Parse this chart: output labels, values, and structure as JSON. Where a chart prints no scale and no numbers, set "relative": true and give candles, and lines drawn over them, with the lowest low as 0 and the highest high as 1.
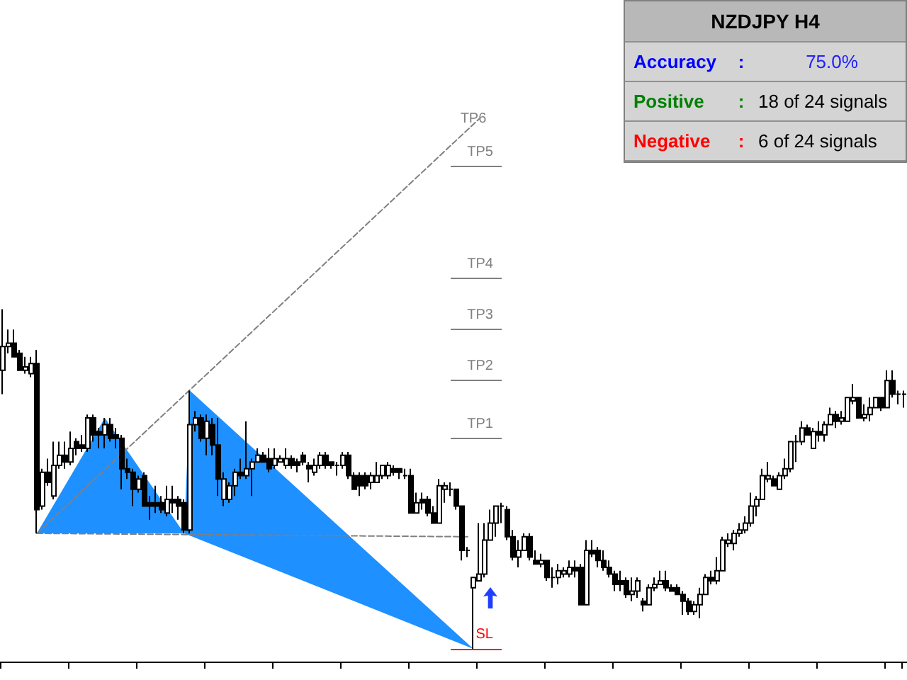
{
  "chart_data": {
    "type": "candlestick",
    "title": "NZDJPY  H4",
    "relative": true,
    "tick_labels": false,
    "annotations": [
      "Accuracy",
      ":",
      "75.0%",
      "Positive",
      ":",
      "18 of 24 signals",
      "Negative",
      ":",
      "6 of 24 signals",
      {
        "text": "TP6",
        "y": 1.56
      }
    ],
    "categories": [
      null,
      null,
      null,
      null,
      null,
      null,
      null,
      null,
      null,
      null,
      null,
      null,
      null,
      null,
      null,
      null,
      null,
      null,
      null,
      null,
      null,
      null,
      null,
      null,
      null,
      null,
      null,
      null,
      null,
      null,
      null,
      null,
      null,
      null,
      null,
      null,
      null,
      null,
      null,
      null,
      null,
      null,
      null,
      null,
      null,
      null,
      null,
      null,
      null,
      null,
      null,
      null,
      null,
      null,
      null,
      null,
      null,
      null,
      null,
      null,
      null,
      null,
      null,
      null,
      null,
      null,
      null,
      null,
      null,
      null,
      null,
      null,
      null,
      null,
      null,
      null,
      null,
      null,
      null,
      null,
      null,
      null,
      null,
      null,
      null,
      null,
      null,
      null,
      null,
      null,
      null,
      null,
      null,
      null,
      null,
      null,
      null,
      null,
      null,
      null,
      null,
      null,
      null,
      null,
      null,
      null,
      null,
      null,
      null,
      null,
      null,
      null,
      null,
      null,
      null,
      null,
      null,
      null,
      null,
      null,
      null,
      null,
      null,
      null,
      null,
      null,
      null,
      null,
      null,
      null,
      null,
      null,
      null,
      null,
      null,
      null,
      null,
      null,
      null,
      null,
      null,
      null,
      null,
      null,
      null,
      null,
      null,
      null,
      null,
      null,
      null,
      null,
      null,
      null,
      null,
      null,
      null,
      null,
      null,
      null
    ],
    "ohlc": [
      [
        0.82,
        1,
        0.75,
        0.89
      ],
      [
        0.89,
        0.94,
        0.87,
        0.9
      ],
      [
        0.9,
        0.94,
        0.86,
        0.86
      ],
      [
        0.87,
        0.88,
        0.82,
        0.82
      ],
      [
        0.82,
        0.86,
        0.81,
        0.83
      ],
      [
        0.81,
        0.86,
        0.8,
        0.84
      ],
      [
        0.84,
        0.88,
        0.34,
        0.41
      ],
      [
        0.42,
        0.53,
        0.41,
        0.52
      ],
      [
        0.52,
        0.56,
        0.48,
        0.49
      ],
      [
        0.45,
        0.61,
        0.44,
        0.54
      ],
      [
        0.54,
        0.61,
        0.53,
        0.57
      ],
      [
        0.57,
        0.61,
        0.53,
        0.55
      ],
      [
        0.55,
        0.64,
        0.54,
        0.59
      ],
      [
        0.61,
        0.62,
        0.57,
        0.59
      ],
      [
        0.6,
        0.63,
        0.58,
        0.59
      ],
      [
        0.59,
        0.69,
        0.58,
        0.68
      ],
      [
        0.68,
        0.69,
        0.61,
        0.63
      ],
      [
        0.64,
        0.65,
        0.59,
        0.63
      ],
      [
        0.63,
        0.68,
        0.59,
        0.66
      ],
      [
        0.66,
        0.68,
        0.61,
        0.62
      ],
      [
        0.63,
        0.65,
        0.59,
        0.62
      ],
      [
        0.62,
        0.63,
        0.47,
        0.53
      ],
      [
        0.53,
        0.56,
        0.5,
        0.52
      ],
      [
        0.52,
        0.53,
        0.42,
        0.47
      ],
      [
        0.47,
        0.51,
        0.46,
        0.5
      ],
      [
        0.51,
        0.52,
        0.42,
        0.42
      ],
      [
        0.43,
        0.45,
        0.38,
        0.42
      ],
      [
        0.43,
        0.48,
        0.4,
        0.42
      ],
      [
        0.43,
        0.45,
        0.4,
        0.41
      ],
      [
        0.4,
        0.48,
        0.39,
        0.44
      ],
      [
        0.44,
        0.48,
        0.4,
        0.43
      ],
      [
        0.44,
        0.45,
        0.38,
        0.42
      ],
      [
        0.43,
        0.44,
        0.34,
        0.35
      ],
      [
        0.35,
        0.76,
        0.34,
        0.66
      ],
      [
        0.66,
        0.7,
        0.64,
        0.68
      ],
      [
        0.68,
        0.69,
        0.61,
        0.62
      ],
      [
        0.62,
        0.69,
        0.57,
        0.67
      ],
      [
        0.66,
        0.68,
        0.57,
        0.6
      ],
      [
        0.6,
        0.68,
        0.45,
        0.5
      ],
      [
        0.44,
        0.52,
        0.42,
        0.5
      ],
      [
        0.44,
        0.49,
        0.43,
        0.48
      ],
      [
        0.48,
        0.53,
        0.45,
        0.52
      ],
      [
        0.52,
        0.56,
        0.5,
        0.51
      ],
      [
        0.51,
        0.67,
        0.5,
        0.53
      ],
      [
        0.53,
        0.56,
        0.45,
        0.55
      ],
      [
        0.55,
        0.59,
        0.55,
        0.57
      ],
      [
        0.57,
        0.58,
        0.55,
        0.55
      ],
      [
        0.56,
        0.59,
        0.52,
        0.53
      ],
      [
        0.54,
        0.59,
        0.53,
        0.56
      ],
      [
        0.55,
        0.57,
        0.55,
        0.56
      ],
      [
        0.54,
        0.59,
        0.53,
        0.56
      ],
      [
        0.56,
        0.57,
        0.53,
        0.54
      ],
      [
        0.55,
        0.56,
        0.52,
        0.54
      ],
      [
        0.57,
        0.58,
        0.54,
        0.55
      ],
      [
        0.54,
        0.55,
        0.49,
        0.53
      ],
      [
        0.52,
        0.56,
        0.51,
        0.54
      ],
      [
        0.54,
        0.58,
        0.53,
        0.57
      ],
      [
        0.57,
        0.58,
        0.53,
        0.54
      ],
      [
        0.55,
        0.55,
        0.53,
        0.54
      ],
      [
        0.54,
        0.55,
        0.51,
        0.54
      ],
      [
        0.54,
        0.58,
        0.53,
        0.57
      ],
      [
        0.57,
        0.58,
        0.5,
        0.51
      ],
      [
        0.51,
        0.52,
        0.47,
        0.47
      ],
      [
        0.51,
        0.52,
        0.45,
        0.48
      ],
      [
        0.51,
        0.52,
        0.47,
        0.48
      ],
      [
        0.49,
        0.52,
        0.47,
        0.51
      ],
      [
        0.49,
        0.55,
        0.49,
        0.51
      ],
      [
        0.51,
        0.54,
        0.5,
        0.54
      ],
      [
        0.51,
        0.55,
        0.5,
        0.54
      ],
      [
        0.53,
        0.54,
        0.51,
        0.52
      ],
      [
        0.53,
        0.53,
        0.5,
        0.52
      ],
      [
        0.51,
        0.53,
        0.5,
        0.51
      ],
      [
        0.51,
        0.53,
        0.4,
        0.4
      ],
      [
        0.4,
        0.46,
        0.4,
        0.43
      ],
      [
        0.44,
        0.46,
        0.41,
        0.43
      ],
      [
        0.44,
        0.45,
        0.39,
        0.4
      ],
      [
        0.4,
        0.42,
        0.37,
        0.37
      ],
      [
        0.37,
        0.5,
        0.37,
        0.48
      ],
      [
        0.47,
        0.49,
        0.43,
        0.48
      ],
      [
        0.47,
        0.49,
        0.45,
        0.47
      ],
      [
        0.47,
        0.47,
        0.41,
        0.42
      ],
      [
        0.42,
        0.42,
        0.26,
        0.29
      ],
      [
        0.29,
        0.3,
        0.27,
        0.29
      ],
      [
        0.18,
        0.21,
        0,
        0.21
      ],
      [
        0.2,
        0.37,
        0.2,
        0.22
      ],
      [
        0.22,
        0.37,
        0.21,
        0.32
      ],
      [
        0.32,
        0.41,
        0.32,
        0.37
      ],
      [
        0.37,
        0.42,
        0.33,
        0.42
      ],
      [
        0.42,
        0.43,
        0.37,
        0.42
      ],
      [
        0.41,
        0.42,
        0.32,
        0.33
      ],
      [
        0.33,
        0.35,
        0.26,
        0.27
      ],
      [
        0.27,
        0.32,
        0.24,
        0.29
      ],
      [
        0.29,
        0.34,
        0.29,
        0.33
      ],
      [
        0.33,
        0.34,
        0.26,
        0.27
      ],
      [
        0.26,
        0.29,
        0.25,
        0.25
      ],
      [
        0.25,
        0.28,
        0.24,
        0.26
      ],
      [
        0.26,
        0.26,
        0.2,
        0.21
      ],
      [
        0.21,
        0.24,
        0.18,
        0.21
      ],
      [
        0.21,
        0.25,
        0.19,
        0.23
      ],
      [
        0.22,
        0.24,
        0.21,
        0.23
      ],
      [
        0.22,
        0.26,
        0.21,
        0.24
      ],
      [
        0.24,
        0.26,
        0.21,
        0.23
      ],
      [
        0.24,
        0.25,
        0.13,
        0.13
      ],
      [
        0.13,
        0.32,
        0.13,
        0.29
      ],
      [
        0.29,
        0.32,
        0.27,
        0.28
      ],
      [
        0.29,
        0.3,
        0.24,
        0.26
      ],
      [
        0.26,
        0.29,
        0.23,
        0.24
      ],
      [
        0.24,
        0.26,
        0.21,
        0.22
      ],
      [
        0.22,
        0.23,
        0.17,
        0.19
      ],
      [
        0.2,
        0.23,
        0.17,
        0.19
      ],
      [
        0.2,
        0.21,
        0.15,
        0.16
      ],
      [
        0.16,
        0.21,
        0.14,
        0.17
      ],
      [
        0.17,
        0.21,
        0.15,
        0.2
      ],
      [
        0.14,
        0.15,
        0.11,
        0.13
      ],
      [
        0.13,
        0.19,
        0.13,
        0.18
      ],
      [
        0.18,
        0.21,
        0.17,
        0.19
      ],
      [
        0.19,
        0.23,
        0.19,
        0.2
      ],
      [
        0.2,
        0.23,
        0.17,
        0.18
      ],
      [
        0.18,
        0.19,
        0.17,
        0.17
      ],
      [
        0.18,
        0.19,
        0.16,
        0.16
      ],
      [
        0.16,
        0.17,
        0.1,
        0.14
      ],
      [
        0.14,
        0.15,
        0.1,
        0.11
      ],
      [
        0.11,
        0.14,
        0.1,
        0.13
      ],
      [
        0.13,
        0.18,
        0.09,
        0.16
      ],
      [
        0.16,
        0.22,
        0.16,
        0.21
      ],
      [
        0.21,
        0.23,
        0.19,
        0.2
      ],
      [
        0.2,
        0.27,
        0.19,
        0.23
      ],
      [
        0.23,
        0.33,
        0.23,
        0.32
      ],
      [
        0.31,
        0.34,
        0.3,
        0.32
      ],
      [
        0.31,
        0.35,
        0.29,
        0.34
      ],
      [
        0.34,
        0.37,
        0.33,
        0.35
      ],
      [
        0.35,
        0.39,
        0.34,
        0.37
      ],
      [
        0.37,
        0.46,
        0.36,
        0.42
      ],
      [
        0.42,
        0.45,
        0.39,
        0.44
      ],
      [
        0.44,
        0.53,
        0.44,
        0.51
      ],
      [
        0.5,
        0.55,
        0.49,
        0.51
      ],
      [
        0.5,
        0.51,
        0.48,
        0.48
      ],
      [
        0.47,
        0.52,
        0.47,
        0.51
      ],
      [
        0.51,
        0.56,
        0.5,
        0.53
      ],
      [
        0.53,
        0.61,
        0.52,
        0.61
      ],
      [
        0.61,
        0.63,
        0.55,
        0.61
      ],
      [
        0.61,
        0.67,
        0.6,
        0.65
      ],
      [
        0.65,
        0.66,
        0.63,
        0.63
      ],
      [
        0.59,
        0.65,
        0.59,
        0.64
      ],
      [
        0.64,
        0.67,
        0.61,
        0.63
      ],
      [
        0.63,
        0.67,
        0.61,
        0.66
      ],
      [
        0.66,
        0.71,
        0.66,
        0.69
      ],
      [
        0.69,
        0.7,
        0.65,
        0.67
      ],
      [
        0.67,
        0.7,
        0.66,
        0.68
      ],
      [
        0.67,
        0.74,
        0.67,
        0.74
      ],
      [
        0.73,
        0.78,
        0.72,
        0.74
      ],
      [
        0.74,
        0.74,
        0.68,
        0.68
      ],
      [
        0.68,
        0.72,
        0.67,
        0.69
      ],
      [
        0.69,
        0.74,
        0.67,
        0.71
      ],
      [
        0.71,
        0.74,
        0.71,
        0.74
      ],
      [
        0.74,
        0.74,
        0.7,
        0.71
      ],
      [
        0.71,
        0.82,
        0.71,
        0.79
      ],
      [
        0.79,
        0.82,
        0.74,
        0.75
      ],
      [
        0.75,
        0.76,
        0.72,
        0.75
      ],
      [
        0.75,
        0.76,
        0.71,
        0.75
      ]
    ],
    "series": [
      {
        "type": "area",
        "color": "#1e90ff",
        "values": [
          null,
          null,
          null,
          null,
          null,
          null,
          0.34,
          null,
          null,
          null,
          null,
          null,
          null,
          null,
          null,
          null,
          null,
          null,
          0.68,
          null,
          null,
          null,
          null,
          null,
          null,
          null,
          null,
          null,
          null,
          null,
          null,
          null,
          0.34,
          null,
          null,
          null,
          null,
          null,
          null,
          null,
          null,
          null,
          null,
          null,
          null,
          null,
          null,
          null,
          null,
          null,
          null,
          null,
          null,
          null,
          null,
          null,
          null,
          null,
          null,
          null,
          null,
          null,
          null,
          null,
          null,
          null,
          null,
          null,
          null,
          null,
          null,
          null,
          null,
          null,
          null,
          null,
          null,
          null,
          null,
          null,
          null,
          null,
          null,
          null,
          null,
          null,
          null,
          null,
          null,
          null,
          null,
          null,
          null,
          null,
          null,
          null,
          null,
          null,
          null,
          null,
          null,
          null,
          null,
          null,
          null,
          null,
          null,
          null,
          null,
          null,
          null,
          null,
          null,
          null,
          null,
          null,
          null,
          null,
          null,
          null,
          null,
          null,
          null,
          null,
          null,
          null,
          null,
          null,
          null,
          null,
          null,
          null,
          null,
          null,
          null,
          null,
          null,
          null,
          null,
          null,
          null,
          null,
          null,
          null,
          null,
          null,
          null,
          null,
          null,
          null,
          null,
          null,
          null,
          null,
          null,
          null,
          null,
          null,
          null,
          null
        ]
      },
      {
        "type": "area",
        "color": "#1e90ff",
        "values": [
          null,
          null,
          null,
          null,
          null,
          null,
          null,
          null,
          null,
          null,
          null,
          null,
          null,
          null,
          null,
          null,
          null,
          null,
          null,
          null,
          null,
          null,
          null,
          null,
          null,
          null,
          null,
          null,
          null,
          null,
          null,
          null,
          0.34,
          0.76,
          null,
          null,
          null,
          null,
          null,
          null,
          null,
          null,
          null,
          null,
          null,
          null,
          null,
          null,
          null,
          null,
          null,
          null,
          null,
          null,
          null,
          null,
          null,
          null,
          null,
          null,
          null,
          null,
          null,
          null,
          null,
          null,
          null,
          null,
          null,
          null,
          null,
          null,
          null,
          null,
          null,
          null,
          null,
          null,
          null,
          null,
          null,
          null,
          null,
          0,
          null,
          null,
          null,
          null,
          null,
          null,
          null,
          null,
          null,
          null,
          null,
          null,
          null,
          null,
          null,
          null,
          null,
          null,
          null,
          null,
          null,
          null,
          null,
          null,
          null,
          null,
          null,
          null,
          null,
          null,
          null,
          null,
          null,
          null,
          null,
          null,
          null,
          null,
          null,
          null,
          null,
          null,
          null,
          null,
          null,
          null,
          null,
          null,
          null,
          null,
          null,
          null,
          null,
          null,
          null,
          null,
          null,
          null,
          null,
          null,
          null,
          null,
          null,
          null,
          null,
          null,
          null,
          null,
          null,
          null,
          null,
          null,
          null,
          null,
          null,
          null
        ]
      },
      {
        "type": "line",
        "color": "#808080",
        "line_style": "dashed",
        "values": [
          null,
          null,
          null,
          null,
          null,
          null,
          0.34,
          null,
          null,
          null,
          null,
          null,
          null,
          null,
          null,
          null,
          null,
          null,
          null,
          null,
          null,
          null,
          null,
          null,
          null,
          null,
          null,
          null,
          null,
          null,
          null,
          null,
          null,
          null,
          null,
          null,
          null,
          null,
          null,
          null,
          null,
          null,
          null,
          null,
          null,
          null,
          null,
          null,
          null,
          null,
          null,
          null,
          null,
          null,
          null,
          null,
          null,
          null,
          null,
          null,
          null,
          null,
          null,
          null,
          null,
          null,
          null,
          null,
          null,
          null,
          null,
          null,
          null,
          null,
          null,
          null,
          null,
          null,
          null,
          null,
          null,
          null,
          null,
          null,
          1.56,
          null,
          null,
          null,
          null,
          null,
          null,
          null,
          null,
          null,
          null,
          null,
          null,
          null,
          null,
          null,
          null,
          null,
          null,
          null,
          null,
          null,
          null,
          null,
          null,
          null,
          null,
          null,
          null,
          null,
          null,
          null,
          null,
          null,
          null,
          null,
          null,
          null,
          null,
          null,
          null,
          null,
          null,
          null,
          null,
          null,
          null,
          null,
          null,
          null,
          null,
          null,
          null,
          null,
          null,
          null,
          null,
          null,
          null,
          null,
          null,
          null,
          null,
          null,
          null,
          null,
          null,
          null,
          null,
          null,
          null,
          null,
          null,
          null,
          null,
          null
        ]
      },
      {
        "type": "line",
        "color": "#808080",
        "line_style": "dashed",
        "values": [
          null,
          null,
          null,
          null,
          null,
          null,
          0.34,
          null,
          null,
          null,
          null,
          null,
          null,
          null,
          null,
          null,
          null,
          null,
          null,
          null,
          null,
          null,
          null,
          null,
          null,
          null,
          null,
          null,
          null,
          null,
          null,
          null,
          null,
          null,
          null,
          null,
          null,
          null,
          null,
          null,
          null,
          null,
          null,
          null,
          null,
          null,
          null,
          null,
          null,
          null,
          null,
          null,
          null,
          null,
          null,
          null,
          null,
          null,
          null,
          null,
          null,
          null,
          null,
          null,
          null,
          null,
          null,
          null,
          null,
          null,
          null,
          null,
          null,
          null,
          null,
          null,
          null,
          null,
          null,
          null,
          null,
          null,
          0.33,
          null,
          null,
          null,
          null,
          null,
          null,
          null,
          null,
          null,
          null,
          null,
          null,
          null,
          null,
          null,
          null,
          null,
          null,
          null,
          null,
          null,
          null,
          null,
          null,
          null,
          null,
          null,
          null,
          null,
          null,
          null,
          null,
          null,
          null,
          null,
          null,
          null,
          null,
          null,
          null,
          null,
          null,
          null,
          null,
          null,
          null,
          null,
          null,
          null,
          null,
          null,
          null,
          null,
          null,
          null,
          null,
          null,
          null,
          null,
          null,
          null,
          null,
          null,
          null,
          null,
          null,
          null,
          null,
          null,
          null,
          null,
          null,
          null,
          null,
          null,
          null,
          null
        ]
      }
    ],
    "ref_lines": [
      {
        "axis": "y",
        "value": 0.62,
        "label": "TP1",
        "color": "#808080"
      },
      {
        "axis": "y",
        "value": 0.79,
        "label": "TP2",
        "color": "#808080"
      },
      {
        "axis": "y",
        "value": 0.94,
        "label": "TP3",
        "color": "#808080"
      },
      {
        "axis": "y",
        "value": 1.09,
        "label": "TP4",
        "color": "#808080"
      },
      {
        "axis": "y",
        "value": 1.42,
        "label": "TP5",
        "color": "#808080"
      },
      {
        "axis": "y",
        "value": 0,
        "label": "SL",
        "color": "#ff0000"
      }
    ]
  }
}
